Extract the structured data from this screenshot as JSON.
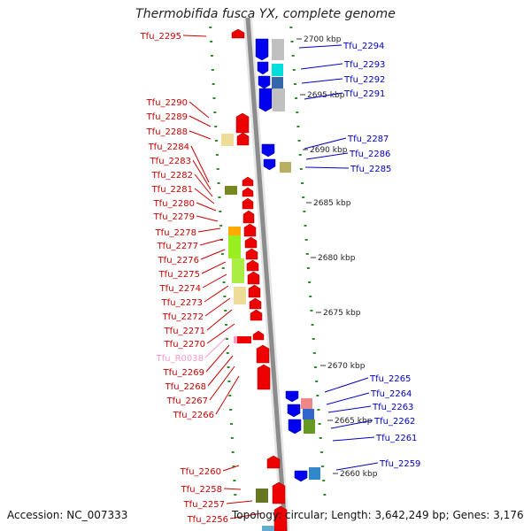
{
  "title": "Thermobifida fusca YX, complete genome",
  "accession": "Accession: NC_007333",
  "topology": "Topology: circular; Length: 3,642,249 bp; Genes: 3,176",
  "colors": {
    "forward_gene": "#ee0000",
    "reverse_gene": "#0000ee",
    "trna": "#ff99cc",
    "forward_label": "#cc0000",
    "reverse_label": "#0000cc",
    "backbone": "#8c8c8c",
    "tick": "#2e8b2e"
  },
  "scale_labels": [
    "2700 kbp",
    "2695 kbp",
    "2690 kbp",
    "2685 kbp",
    "2680 kbp",
    "2675 kbp",
    "2670 kbp",
    "2665 kbp",
    "2660 kbp"
  ],
  "left_labels": [
    "Tfu_2295",
    "Tfu_2290",
    "Tfu_2289",
    "Tfu_2288",
    "Tfu_2284",
    "Tfu_2283",
    "Tfu_2282",
    "Tfu_2281",
    "Tfu_2280",
    "Tfu_2279",
    "Tfu_2278",
    "Tfu_2277",
    "Tfu_2276",
    "Tfu_2275",
    "Tfu_2274",
    "Tfu_2273",
    "Tfu_2272",
    "Tfu_2271",
    "Tfu_2270",
    "Tfu_R0038",
    "Tfu_2269",
    "Tfu_2268",
    "Tfu_2267",
    "Tfu_2266",
    "Tfu_2260",
    "Tfu_2258",
    "Tfu_2257",
    "Tfu_2256"
  ],
  "right_labels": [
    "Tfu_2294",
    "Tfu_2293",
    "Tfu_2292",
    "Tfu_2291",
    "Tfu_2287",
    "Tfu_2286",
    "Tfu_2285",
    "Tfu_2265",
    "Tfu_2264",
    "Tfu_2263",
    "Tfu_2262",
    "Tfu_2261",
    "Tfu_2259"
  ]
}
